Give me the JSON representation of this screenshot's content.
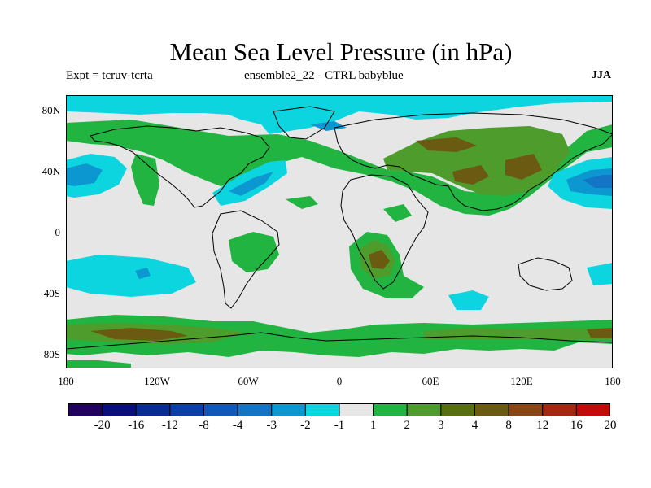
{
  "title": "Mean Sea Level Pressure (in hPa)",
  "subtitle_left": "Expt = tcruv-tcrta",
  "subtitle_center": "ensemble2_22 - CTRL babyblue",
  "season": "JJA",
  "lat_labels": [
    "80N",
    "40N",
    "0",
    "40S",
    "80S"
  ],
  "lon_labels": [
    "180",
    "120W",
    "60W",
    "0",
    "60E",
    "120E",
    "180"
  ],
  "colorbar": {
    "labels": [
      "-20",
      "-16",
      "-12",
      "-8",
      "-4",
      "-3",
      "-2",
      "-1",
      "1",
      "2",
      "3",
      "4",
      "8",
      "12",
      "16",
      "20"
    ],
    "colors": [
      "#21005f",
      "#0a0d7a",
      "#082b94",
      "#0a3fa8",
      "#0f57b9",
      "#1474c6",
      "#0d97d0",
      "#0cd5e0",
      "#e6e6e6",
      "#21b441",
      "#4e9c2c",
      "#586f10",
      "#6a5a12",
      "#8a4612",
      "#a42810",
      "#c20b08"
    ]
  },
  "map_colors": {
    "neutral": "#e6e6e6",
    "neg_weak": "#0cd5e0",
    "neg_mid": "#0d97d0",
    "neg_strong": "#1474c6",
    "pos_weak": "#21b441",
    "pos_mid": "#4e9c2c",
    "pos_strong": "#6a5a12",
    "coastline": "#000000"
  }
}
